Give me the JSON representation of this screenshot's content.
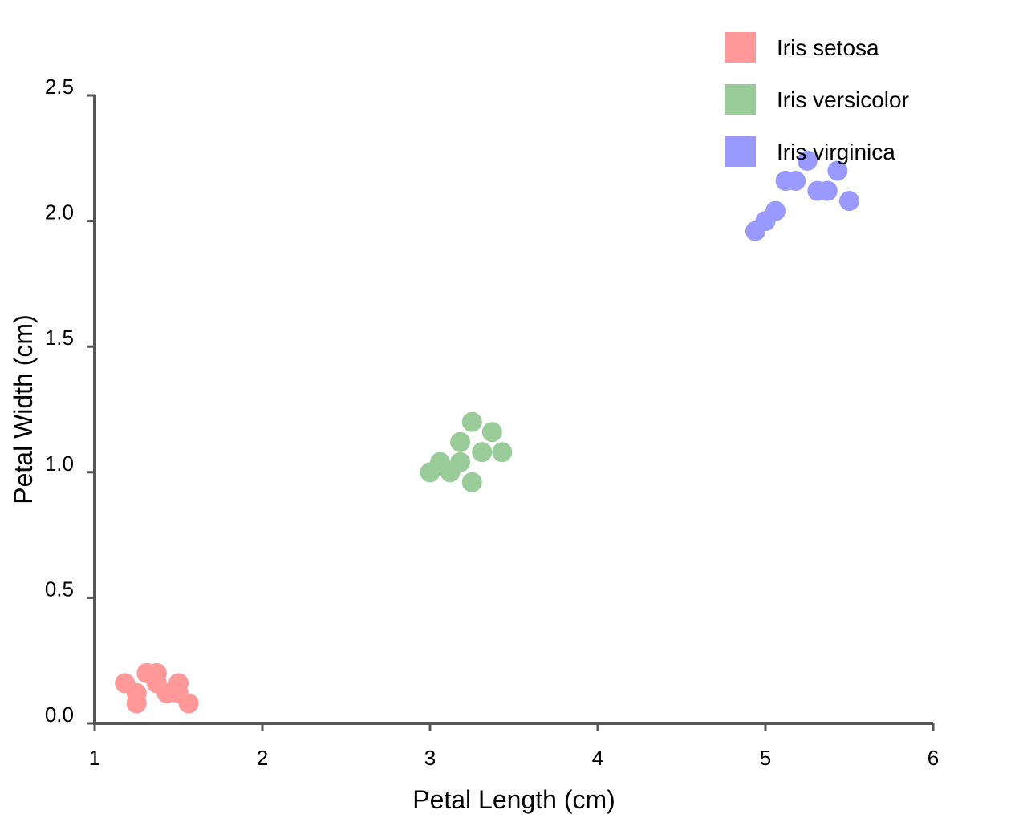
{
  "chart_data": {
    "type": "scatter",
    "title": "",
    "xlabel": "Petal Length (cm)",
    "ylabel": "Petal Width (cm)",
    "xlim": [
      1,
      6
    ],
    "ylim": [
      0,
      2.5
    ],
    "x_ticks": [
      "1",
      "2",
      "3",
      "4",
      "5",
      "6"
    ],
    "y_ticks": [
      "0.0",
      "0.5",
      "1.0",
      "1.5",
      "2.0",
      "2.5"
    ],
    "grid": false,
    "legend_position": "top-right",
    "series": [
      {
        "name": "Iris setosa",
        "color": "#ff9999",
        "points": [
          [
            1.18,
            0.16
          ],
          [
            1.25,
            0.12
          ],
          [
            1.25,
            0.08
          ],
          [
            1.31,
            0.2
          ],
          [
            1.37,
            0.2
          ],
          [
            1.37,
            0.16
          ],
          [
            1.43,
            0.12
          ],
          [
            1.5,
            0.16
          ],
          [
            1.5,
            0.12
          ],
          [
            1.56,
            0.08
          ]
        ]
      },
      {
        "name": "Iris versicolor",
        "color": "#99cc99",
        "points": [
          [
            3.0,
            1.0
          ],
          [
            3.06,
            1.04
          ],
          [
            3.12,
            1.0
          ],
          [
            3.18,
            1.04
          ],
          [
            3.18,
            1.12
          ],
          [
            3.25,
            1.2
          ],
          [
            3.25,
            0.96
          ],
          [
            3.31,
            1.08
          ],
          [
            3.37,
            1.16
          ],
          [
            3.43,
            1.08
          ]
        ]
      },
      {
        "name": "Iris virginica",
        "color": "#9999ff",
        "points": [
          [
            4.94,
            1.96
          ],
          [
            5.0,
            2.0
          ],
          [
            5.06,
            2.04
          ],
          [
            5.12,
            2.16
          ],
          [
            5.18,
            2.16
          ],
          [
            5.25,
            2.24
          ],
          [
            5.31,
            2.12
          ],
          [
            5.37,
            2.12
          ],
          [
            5.43,
            2.2
          ],
          [
            5.5,
            2.08
          ]
        ]
      }
    ]
  }
}
